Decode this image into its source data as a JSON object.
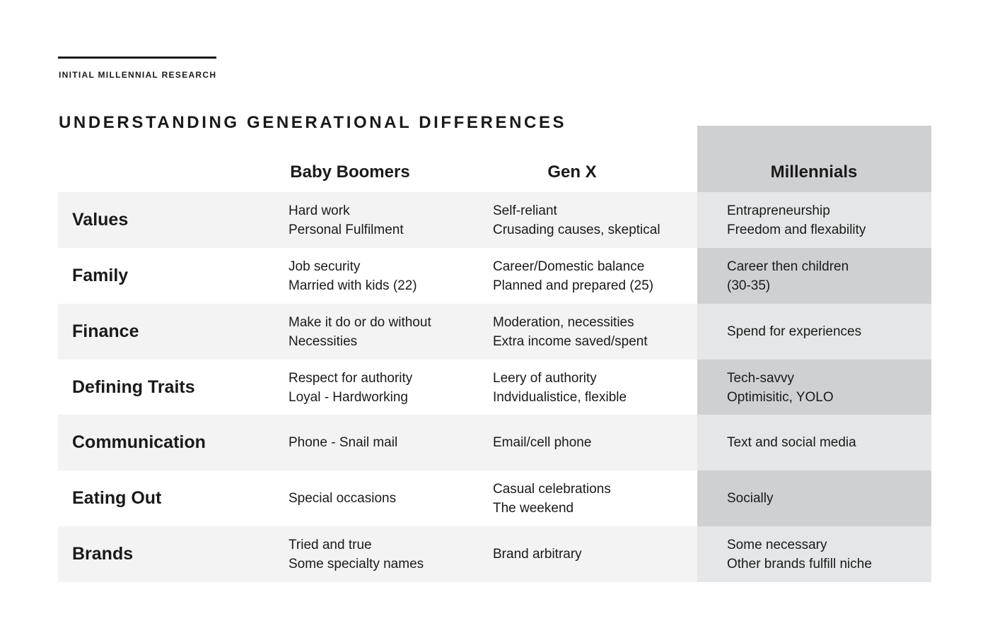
{
  "kicker": "INITIAL MILLENNIAL RESEARCH",
  "title": "UNDERSTANDING GENERATIONAL DIFFERENCES",
  "columns": [
    "Baby Boomers",
    "Gen X",
    "Millennials"
  ],
  "rows": [
    {
      "label": "Values",
      "boomers": [
        "Hard work",
        "Personal Fulfilment"
      ],
      "genx": [
        "Self-reliant",
        "Crusading causes, skeptical"
      ],
      "millennials": [
        "Entrapreneurship",
        "Freedom and flexability"
      ]
    },
    {
      "label": "Family",
      "boomers": [
        "Job security",
        "Married with kids (22)"
      ],
      "genx": [
        "Career/Domestic balance",
        "Planned and prepared (25)"
      ],
      "millennials": [
        "Career then children",
        "(30-35)"
      ]
    },
    {
      "label": "Finance",
      "boomers": [
        "Make it do or do without",
        "Necessities"
      ],
      "genx": [
        "Moderation, necessities",
        "Extra income saved/spent"
      ],
      "millennials": [
        "Spend for experiences"
      ]
    },
    {
      "label": "Defining Traits",
      "boomers": [
        "Respect for authority",
        "Loyal - Hardworking"
      ],
      "genx": [
        "Leery of authority",
        "Indvidualistice, flexible"
      ],
      "millennials": [
        "Tech-savvy",
        "Optimisitic, YOLO"
      ]
    },
    {
      "label": "Communication",
      "boomers": [
        "Phone - Snail mail"
      ],
      "genx": [
        "Email/cell phone"
      ],
      "millennials": [
        "Text and social media"
      ]
    },
    {
      "label": "Eating Out",
      "boomers": [
        "Special occasions"
      ],
      "genx": [
        "Casual celebrations",
        "The weekend"
      ],
      "millennials": [
        "Socially"
      ]
    },
    {
      "label": "Brands",
      "boomers": [
        "Tried and true",
        "Some specialty names"
      ],
      "genx": [
        "Brand arbitrary"
      ],
      "millennials": [
        "Some necessary",
        "Other brands fulfill niche"
      ]
    }
  ]
}
